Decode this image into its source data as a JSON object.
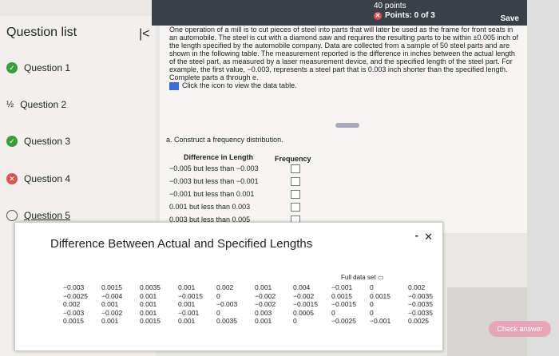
{
  "header": {
    "points": "40 points",
    "score": "Points: 0 of 3",
    "save": "Save"
  },
  "sidebar": {
    "title": "Question list",
    "items": [
      {
        "label": "Question 1",
        "status": "correct"
      },
      {
        "label": "Question 2",
        "status": "partial"
      },
      {
        "label": "Question 3",
        "status": "correct"
      },
      {
        "label": "Question 4",
        "status": "incorrect"
      },
      {
        "label": "Question 5",
        "status": "unanswered"
      }
    ]
  },
  "problem": {
    "text": "One operation of a mill is to cut pieces of steel into parts that will later be used as the frame for front seats in an automobile. The steel is cut with a diamond saw and requires the resulting parts to be within ±0.005 inch of the length specified by the automobile company. Data are collected from a sample of 50 steel parts and are shown in the following table. The measurement reported is the difference in inches between the actual length of the steel part, as measured by a laser measurement device, and the specified length of the steel part. For example, the first value, −0.003, represents a steel part that is 0.003 inch shorter than the specified length. Complete parts a through e.",
    "table_link": "Click the icon to view the data table.",
    "part_a": "a. Construct a frequency distribution.",
    "col1": "Difference in Length",
    "col2": "Frequency",
    "rows": [
      "−0.005 but less than −0.003",
      "−0.003 but less than −0.001",
      "−0.001 but less than 0.001",
      "0.001 but less than 0.003",
      "0.003 but less than 0.005"
    ]
  },
  "modal": {
    "title": "Difference Between Actual and Specified Lengths",
    "full_data": "Full data set",
    "values": [
      [
        "−0.003",
        "0.0015",
        "0.0035",
        "0.001",
        "0.002",
        "0.001",
        "0.004",
        "−0.001",
        "0",
        "0.002"
      ],
      [
        "−0.0025",
        "−0.004",
        "0.001",
        "−0.0015",
        "0",
        "−0.002",
        "−0.002",
        "0.0015",
        "0.0015",
        "−0.0035"
      ],
      [
        "0.002",
        "0.001",
        "0.001",
        "0.001",
        "−0.003",
        "−0.002",
        "−0.0015",
        "−0.0015",
        "0",
        "−0.0035"
      ],
      [
        "−0.003",
        "−0.002",
        "0.001",
        "−0.001",
        "0",
        "0.003",
        "0.0005",
        "0",
        "0",
        "−0.0035"
      ],
      [
        "0.0015",
        "0.001",
        "0.0015",
        "0.001",
        "0.0035",
        "0.001",
        "0",
        "−0.0025",
        "−0.001",
        "0.0025"
      ]
    ]
  },
  "actions": {
    "check": "Check answer"
  },
  "colors": {
    "correct": "#3a9d3a",
    "incorrect": "#d9534f",
    "accent": "#3a6fd8"
  }
}
